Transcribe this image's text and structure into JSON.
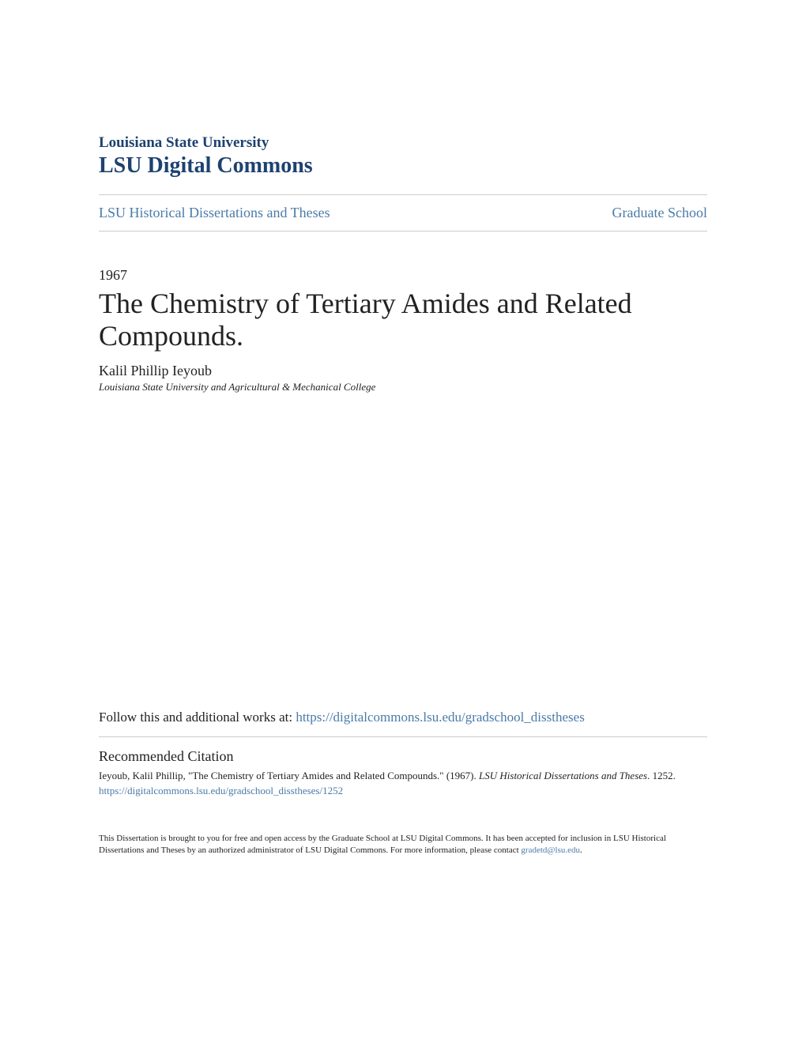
{
  "header": {
    "university": "Louisiana State University",
    "repository": "LSU Digital Commons"
  },
  "nav": {
    "collection": "LSU Historical Dissertations and Theses",
    "school": "Graduate School"
  },
  "document": {
    "year": "1967",
    "title": "The Chemistry of Tertiary Amides and Related Compounds.",
    "author": "Kalil Phillip Ieyoub",
    "affiliation": "Louisiana State University and Agricultural & Mechanical College"
  },
  "follow": {
    "prefix": "Follow this and additional works at: ",
    "url": "https://digitalcommons.lsu.edu/gradschool_disstheses"
  },
  "citation": {
    "heading": "Recommended Citation",
    "text_part1": "Ieyoub, Kalil Phillip, \"The Chemistry of Tertiary Amides and Related Compounds.\" (1967). ",
    "series": "LSU Historical Dissertations and Theses",
    "text_part2": ". 1252.",
    "url": "https://digitalcommons.lsu.edu/gradschool_disstheses/1252"
  },
  "footer": {
    "text": "This Dissertation is brought to you for free and open access by the Graduate School at LSU Digital Commons. It has been accepted for inclusion in LSU Historical Dissertations and Theses by an authorized administrator of LSU Digital Commons. For more information, please contact ",
    "email": "gradetd@lsu.edu",
    "period": "."
  },
  "colors": {
    "link": "#4a7ba8",
    "heading": "#1d4270",
    "text": "#222222",
    "divider": "#cccccc",
    "background": "#ffffff"
  }
}
